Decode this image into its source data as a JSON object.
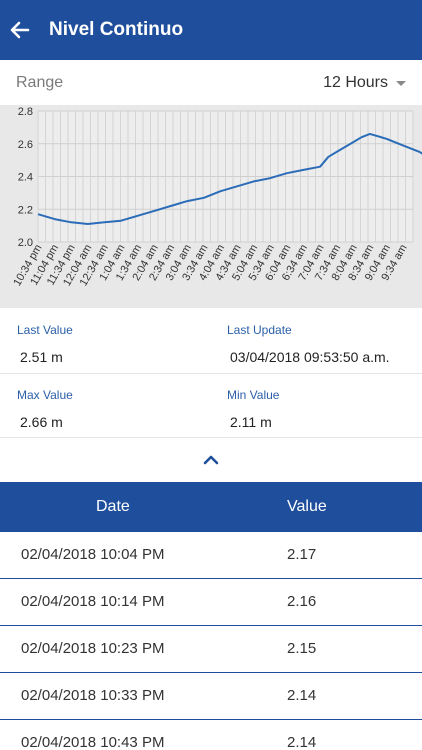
{
  "header": {
    "title": "Nivel Continuo",
    "back_icon": "arrow-left-icon",
    "background": "#1f4f9c"
  },
  "range": {
    "label": "Range",
    "selected": "12 Hours"
  },
  "chart_data": {
    "type": "line",
    "ylim": [
      2.0,
      2.8
    ],
    "y_ticks": [
      "2.0",
      "2.2",
      "2.4",
      "2.6",
      "2.8"
    ],
    "x_tick_labels": [
      "10:34 pm",
      "11:04 pm",
      "11:34 pm",
      "12:04 am",
      "12:34 am",
      "1:04 am",
      "1:34 am",
      "2:04 am",
      "2:34 am",
      "3:04 am",
      "3:34 am",
      "4:04 am",
      "4:34 am",
      "5:04 am",
      "5:34 am",
      "6:04 am",
      "6:34 am",
      "7:04 am",
      "7:34 am",
      "8:04 am",
      "8:34 am",
      "9:04 am",
      "9:34 am"
    ],
    "grid": true,
    "line_color": "#2b6cb8",
    "series": [
      {
        "x": [
          0,
          1,
          2,
          3,
          4,
          5,
          6,
          7,
          8,
          9,
          10,
          11,
          12,
          13,
          14,
          15,
          16,
          17,
          17.5,
          18,
          19,
          19.5,
          20,
          21,
          22,
          23,
          23.6
        ],
        "values": [
          2.17,
          2.14,
          2.12,
          2.11,
          2.12,
          2.13,
          2.16,
          2.19,
          2.22,
          2.25,
          2.27,
          2.31,
          2.34,
          2.37,
          2.39,
          2.42,
          2.44,
          2.46,
          2.52,
          2.55,
          2.61,
          2.64,
          2.66,
          2.63,
          2.59,
          2.55,
          2.51
        ]
      }
    ]
  },
  "stats": {
    "last_value_label": "Last Value",
    "last_value": "2.51 m",
    "last_update_label": "Last Update",
    "last_update": "03/04/2018 09:53:50 a.m.",
    "max_value_label": "Max Value",
    "max_value": "2.66 m",
    "min_value_label": "Min Value",
    "min_value": "2.11 m"
  },
  "collapse_icon": "chevron-up-icon",
  "table": {
    "headers": {
      "date": "Date",
      "value": "Value"
    },
    "rows": [
      {
        "date": "02/04/2018 10:04 PM",
        "value": "2.17"
      },
      {
        "date": "02/04/2018 10:14 PM",
        "value": "2.16"
      },
      {
        "date": "02/04/2018 10:23 PM",
        "value": "2.15"
      },
      {
        "date": "02/04/2018 10:33 PM",
        "value": "2.14"
      },
      {
        "date": "02/04/2018 10:43 PM",
        "value": "2.14"
      }
    ]
  }
}
